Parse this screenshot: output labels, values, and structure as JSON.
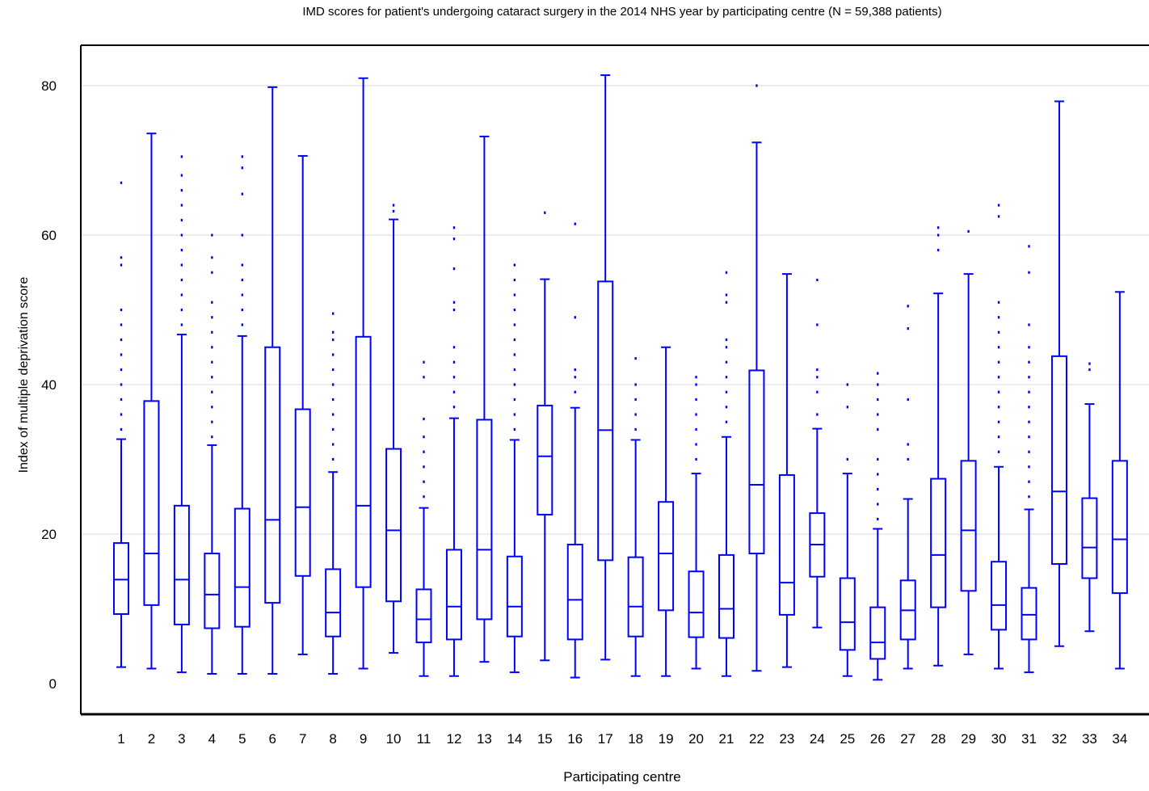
{
  "chart_data": {
    "type": "boxplot",
    "title": "IMD scores for patient's undergoing cataract surgery in the 2014 NHS year by participating centre (N = 59,388 patients)",
    "xlabel": "Participating centre",
    "ylabel": "Index of multiple deprivation score",
    "ylim": [
      -4,
      86
    ],
    "yticks": [
      0,
      20,
      40,
      60,
      80
    ],
    "grid": "horizontal",
    "color": "#0000ff",
    "categories": [
      "1",
      "2",
      "3",
      "4",
      "5",
      "6",
      "7",
      "8",
      "9",
      "10",
      "11",
      "12",
      "13",
      "14",
      "15",
      "16",
      "17",
      "18",
      "19",
      "20",
      "21",
      "22",
      "23",
      "24",
      "25",
      "26",
      "27",
      "28",
      "29",
      "30",
      "31",
      "32",
      "33",
      "34"
    ],
    "boxes": [
      {
        "min": 2.2,
        "q1": 9.3,
        "median": 13.9,
        "q3": 18.8,
        "max": 32.7,
        "outliers": [
          34,
          36,
          38,
          40,
          42,
          44,
          46,
          48,
          50,
          56,
          57,
          67
        ]
      },
      {
        "min": 2.0,
        "q1": 10.5,
        "median": 17.4,
        "q3": 37.8,
        "max": 73.6,
        "outliers": []
      },
      {
        "min": 1.5,
        "q1": 7.9,
        "median": 13.9,
        "q3": 23.8,
        "max": 46.7,
        "outliers": [
          48,
          50,
          52,
          54,
          56,
          58,
          60,
          62,
          64,
          66,
          68,
          70.5
        ]
      },
      {
        "min": 1.3,
        "q1": 7.4,
        "median": 11.9,
        "q3": 17.4,
        "max": 31.9,
        "outliers": [
          33,
          35,
          37,
          39,
          41,
          43,
          45,
          47,
          49,
          51,
          55,
          57,
          60
        ]
      },
      {
        "min": 1.3,
        "q1": 7.6,
        "median": 12.9,
        "q3": 23.4,
        "max": 46.5,
        "outliers": [
          48,
          50,
          52,
          54,
          56,
          60,
          65.5,
          69,
          70.5
        ]
      },
      {
        "min": 1.3,
        "q1": 10.8,
        "median": 21.9,
        "q3": 45.0,
        "max": 79.8,
        "outliers": []
      },
      {
        "min": 3.9,
        "q1": 14.4,
        "median": 23.6,
        "q3": 36.7,
        "max": 70.6,
        "outliers": []
      },
      {
        "min": 1.3,
        "q1": 6.3,
        "median": 9.5,
        "q3": 15.3,
        "max": 28.3,
        "outliers": [
          30,
          32,
          34,
          36,
          38,
          40,
          42,
          44,
          46,
          47,
          49.5
        ]
      },
      {
        "min": 2.0,
        "q1": 12.9,
        "median": 23.8,
        "q3": 46.4,
        "max": 81.0,
        "outliers": []
      },
      {
        "min": 4.1,
        "q1": 11.0,
        "median": 20.5,
        "q3": 31.4,
        "max": 62.1,
        "outliers": [
          63.2,
          64
        ]
      },
      {
        "min": 1.0,
        "q1": 5.5,
        "median": 8.6,
        "q3": 12.6,
        "max": 23.5,
        "outliers": [
          25,
          27,
          29,
          31,
          33,
          35.4,
          41,
          43
        ]
      },
      {
        "min": 1.0,
        "q1": 5.9,
        "median": 10.3,
        "q3": 17.9,
        "max": 35.5,
        "outliers": [
          37,
          39,
          41,
          43,
          45,
          50,
          51,
          55.5,
          59.5,
          61
        ]
      },
      {
        "min": 2.9,
        "q1": 8.6,
        "median": 17.9,
        "q3": 35.3,
        "max": 73.2,
        "outliers": []
      },
      {
        "min": 1.5,
        "q1": 6.3,
        "median": 10.3,
        "q3": 17.0,
        "max": 32.6,
        "outliers": [
          34,
          36,
          38,
          40,
          42,
          44,
          46,
          48,
          50,
          52,
          54,
          56
        ]
      },
      {
        "min": 3.1,
        "q1": 22.6,
        "median": 30.4,
        "q3": 37.2,
        "max": 54.1,
        "outliers": [
          63
        ]
      },
      {
        "min": 0.8,
        "q1": 5.9,
        "median": 11.2,
        "q3": 18.6,
        "max": 36.9,
        "outliers": [
          39,
          41,
          42,
          49,
          61.5
        ]
      },
      {
        "min": 3.2,
        "q1": 16.5,
        "median": 33.9,
        "q3": 53.8,
        "max": 81.4,
        "outliers": []
      },
      {
        "min": 1.0,
        "q1": 6.3,
        "median": 10.3,
        "q3": 16.9,
        "max": 32.6,
        "outliers": [
          34,
          36,
          38,
          40,
          43.5
        ]
      },
      {
        "min": 1.0,
        "q1": 9.8,
        "median": 17.4,
        "q3": 24.3,
        "max": 45.0,
        "outliers": []
      },
      {
        "min": 2.0,
        "q1": 6.2,
        "median": 9.5,
        "q3": 15.0,
        "max": 28.1,
        "outliers": [
          30,
          32,
          34,
          36,
          38,
          40,
          41
        ]
      },
      {
        "min": 1.0,
        "q1": 6.1,
        "median": 10.0,
        "q3": 17.2,
        "max": 33.0,
        "outliers": [
          35,
          37,
          39,
          41,
          43,
          45,
          46,
          51,
          52,
          55
        ]
      },
      {
        "min": 1.7,
        "q1": 17.4,
        "median": 26.6,
        "q3": 41.9,
        "max": 72.4,
        "outliers": [
          80
        ]
      },
      {
        "min": 2.2,
        "q1": 9.2,
        "median": 13.5,
        "q3": 27.9,
        "max": 54.8,
        "outliers": []
      },
      {
        "min": 7.5,
        "q1": 14.3,
        "median": 18.6,
        "q3": 22.8,
        "max": 34.1,
        "outliers": [
          36,
          39,
          41,
          42,
          48,
          54
        ]
      },
      {
        "min": 1.0,
        "q1": 4.5,
        "median": 8.2,
        "q3": 14.1,
        "max": 28.1,
        "outliers": [
          30,
          37,
          40
        ]
      },
      {
        "min": 0.5,
        "q1": 3.3,
        "median": 5.5,
        "q3": 10.2,
        "max": 20.7,
        "outliers": [
          22,
          24,
          26,
          28,
          30,
          34,
          36,
          38,
          40,
          41.5
        ]
      },
      {
        "min": 2.0,
        "q1": 5.9,
        "median": 9.8,
        "q3": 13.8,
        "max": 24.7,
        "outliers": [
          30,
          32,
          38,
          47.5,
          50.5
        ]
      },
      {
        "min": 2.4,
        "q1": 10.2,
        "median": 17.2,
        "q3": 27.4,
        "max": 52.2,
        "outliers": [
          58,
          60,
          61
        ]
      },
      {
        "min": 3.9,
        "q1": 12.4,
        "median": 20.5,
        "q3": 29.8,
        "max": 54.8,
        "outliers": [
          60.5
        ]
      },
      {
        "min": 2.0,
        "q1": 7.2,
        "median": 10.5,
        "q3": 16.3,
        "max": 29.0,
        "outliers": [
          31,
          33,
          35,
          37,
          39,
          41,
          43,
          45,
          47,
          49,
          51,
          62.5,
          64
        ]
      },
      {
        "min": 1.5,
        "q1": 5.9,
        "median": 9.2,
        "q3": 12.8,
        "max": 23.3,
        "outliers": [
          25,
          27,
          29,
          31,
          33,
          35,
          37,
          39,
          41,
          43,
          45,
          48,
          55,
          58.5
        ]
      },
      {
        "min": 5.0,
        "q1": 16.0,
        "median": 25.7,
        "q3": 43.8,
        "max": 77.9,
        "outliers": []
      },
      {
        "min": 7.0,
        "q1": 14.1,
        "median": 18.2,
        "q3": 24.8,
        "max": 37.4,
        "outliers": [
          42,
          42.8
        ]
      },
      {
        "min": 2.0,
        "q1": 12.1,
        "median": 19.3,
        "q3": 29.8,
        "max": 52.4,
        "outliers": []
      }
    ]
  }
}
